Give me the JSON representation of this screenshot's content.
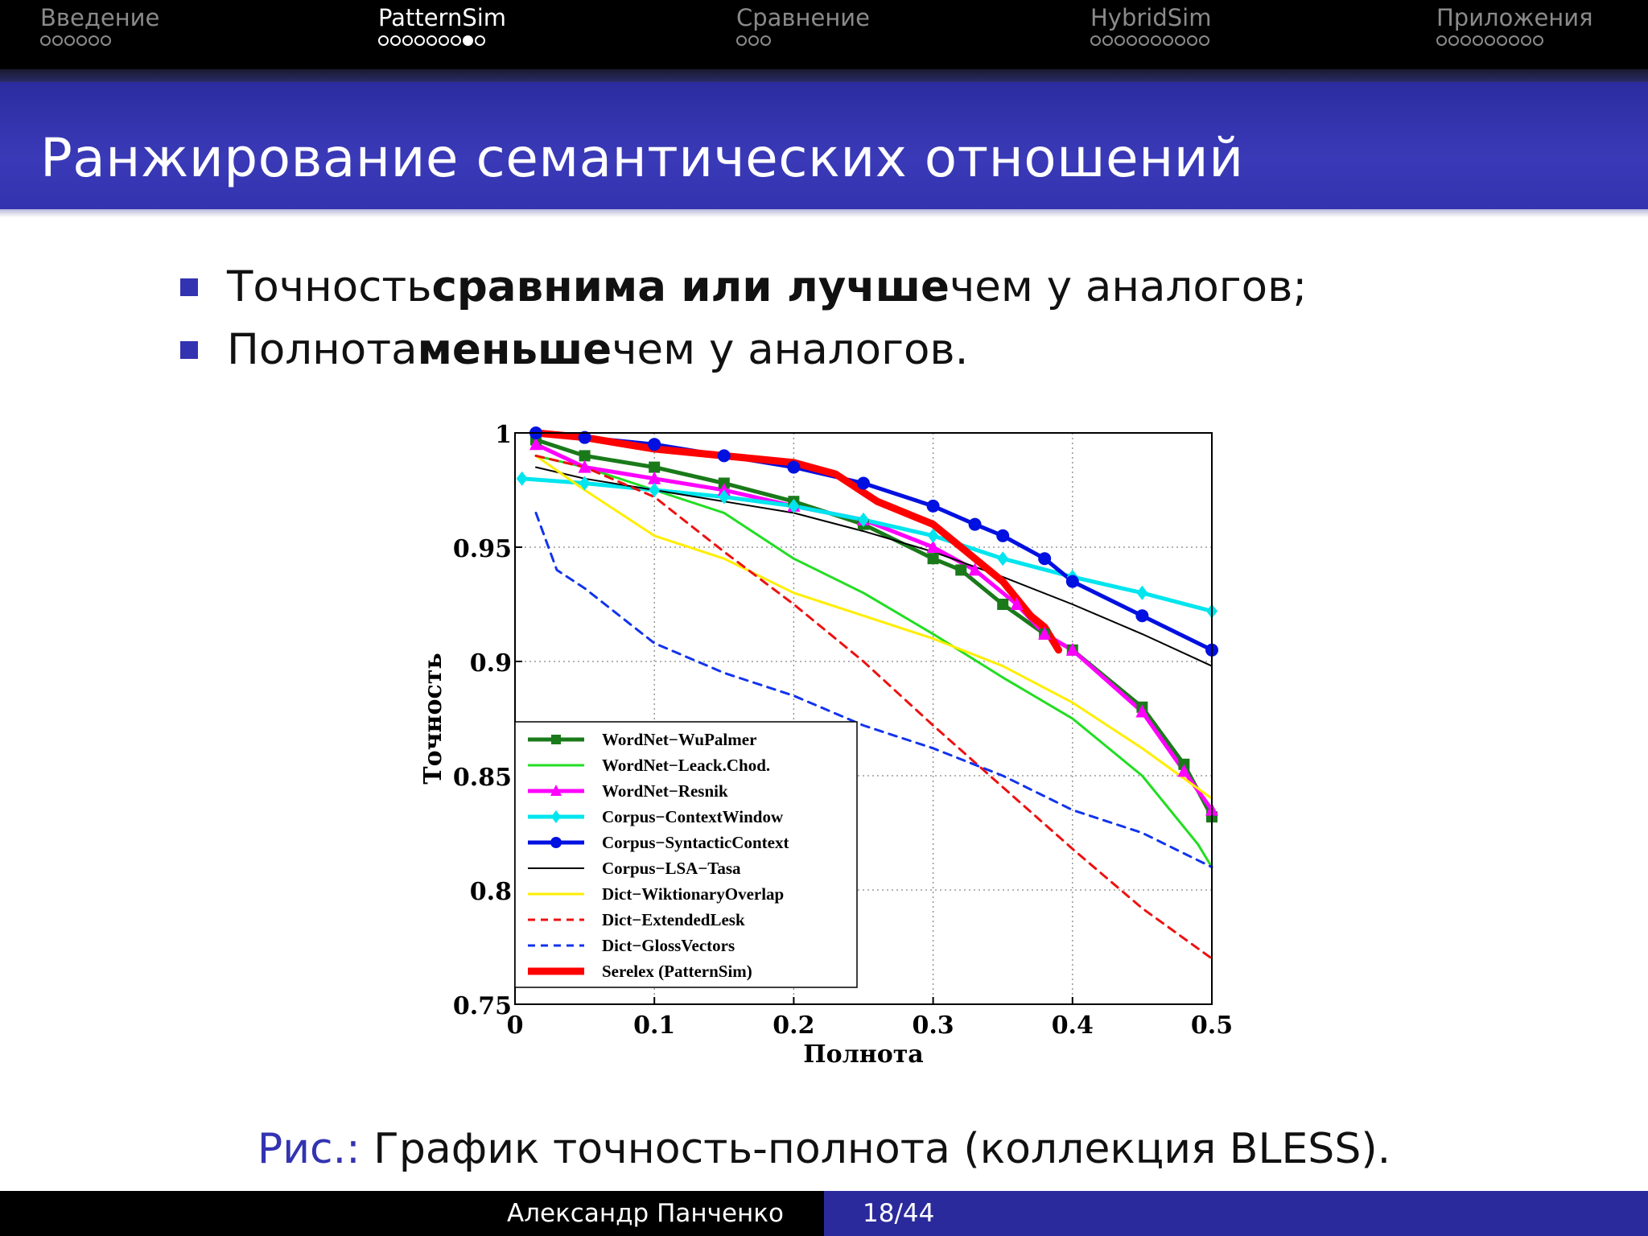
{
  "nav": {
    "sections": [
      {
        "title": "Введение",
        "dots": 6,
        "current": -1,
        "active": false
      },
      {
        "title": "PatternSim",
        "dots": 9,
        "current": 7,
        "active": true
      },
      {
        "title": "Сравнение",
        "dots": 3,
        "current": -1,
        "active": false
      },
      {
        "title": "HybridSim",
        "dots": 10,
        "current": -1,
        "active": false
      },
      {
        "title": "Приложения",
        "dots": 9,
        "current": -1,
        "active": false
      }
    ]
  },
  "title": "Ранжирование семантических отношений",
  "bullets": [
    {
      "before": "Точность ",
      "bold": "сравнима или лучше",
      "after": " чем у аналогов;"
    },
    {
      "before": "Полнота ",
      "bold": "меньше",
      "after": " чем у аналогов."
    }
  ],
  "caption": {
    "prefix": "Рис.:",
    "text": " График точность-полнота (коллекция BLESS)."
  },
  "footer": {
    "author": "Александр Панченко",
    "page": "18/44"
  },
  "colors": {
    "accent": "#3333b2",
    "title_bg": "#3333b0"
  },
  "chart_data": {
    "type": "line",
    "xlabel": "Полнота",
    "ylabel": "Точность",
    "xlim": [
      0,
      0.5
    ],
    "ylim": [
      0.75,
      1
    ],
    "xticks": [
      "0",
      "0.1",
      "0.2",
      "0.3",
      "0.4",
      "0.5"
    ],
    "yticks": [
      "0.75",
      "0.8",
      "0.85",
      "0.9",
      "0.95",
      "1"
    ],
    "grid": true,
    "legend_position": "bottom-left",
    "series": [
      {
        "name": "WordNet−WuPalmer",
        "color": "#1a7a1a",
        "dash": "solid",
        "width": 5,
        "marker": "square",
        "x": [
          0.015,
          0.05,
          0.1,
          0.15,
          0.2,
          0.25,
          0.3,
          0.32,
          0.35,
          0.38,
          0.4,
          0.45,
          0.48,
          0.5
        ],
        "y": [
          0.997,
          0.99,
          0.985,
          0.978,
          0.97,
          0.96,
          0.945,
          0.94,
          0.925,
          0.912,
          0.905,
          0.88,
          0.855,
          0.832
        ]
      },
      {
        "name": "WordNet−Leack.Chod.",
        "color": "#22dd22",
        "dash": "solid",
        "width": 3,
        "marker": "none",
        "x": [
          0.015,
          0.05,
          0.1,
          0.15,
          0.2,
          0.25,
          0.3,
          0.35,
          0.4,
          0.45,
          0.49,
          0.5
        ],
        "y": [
          0.99,
          0.985,
          0.975,
          0.965,
          0.945,
          0.93,
          0.912,
          0.893,
          0.875,
          0.85,
          0.82,
          0.81
        ]
      },
      {
        "name": "WordNet−Resnik",
        "color": "#ff00ff",
        "dash": "solid",
        "width": 5,
        "marker": "triangle",
        "x": [
          0.015,
          0.05,
          0.1,
          0.15,
          0.2,
          0.25,
          0.3,
          0.33,
          0.36,
          0.38,
          0.4,
          0.45,
          0.48,
          0.5
        ],
        "y": [
          0.995,
          0.985,
          0.98,
          0.975,
          0.968,
          0.962,
          0.95,
          0.94,
          0.925,
          0.912,
          0.905,
          0.878,
          0.852,
          0.835
        ]
      },
      {
        "name": "Corpus−ContextWindow",
        "color": "#00e5ee",
        "dash": "solid",
        "width": 5,
        "marker": "diamond",
        "x": [
          0.005,
          0.05,
          0.1,
          0.15,
          0.2,
          0.25,
          0.3,
          0.35,
          0.4,
          0.45,
          0.5
        ],
        "y": [
          0.98,
          0.978,
          0.975,
          0.972,
          0.968,
          0.962,
          0.955,
          0.945,
          0.937,
          0.93,
          0.922
        ]
      },
      {
        "name": "Corpus−SyntacticContext",
        "color": "#0010e0",
        "dash": "solid",
        "width": 5,
        "marker": "circle",
        "x": [
          0.015,
          0.05,
          0.1,
          0.15,
          0.2,
          0.25,
          0.3,
          0.33,
          0.35,
          0.38,
          0.4,
          0.45,
          0.5
        ],
        "y": [
          1.0,
          0.998,
          0.995,
          0.99,
          0.985,
          0.978,
          0.968,
          0.96,
          0.955,
          0.945,
          0.935,
          0.92,
          0.905
        ]
      },
      {
        "name": "Corpus−LSA−Tasa",
        "color": "#000000",
        "dash": "solid",
        "width": 2,
        "marker": "none",
        "x": [
          0.015,
          0.05,
          0.1,
          0.15,
          0.2,
          0.25,
          0.3,
          0.35,
          0.4,
          0.45,
          0.5
        ],
        "y": [
          0.985,
          0.98,
          0.975,
          0.97,
          0.965,
          0.957,
          0.948,
          0.937,
          0.925,
          0.912,
          0.898
        ]
      },
      {
        "name": "Dict−WiktionaryOverlap",
        "color": "#ffee00",
        "dash": "solid",
        "width": 3,
        "marker": "none",
        "x": [
          0.015,
          0.05,
          0.1,
          0.15,
          0.2,
          0.25,
          0.3,
          0.35,
          0.4,
          0.45,
          0.5
        ],
        "y": [
          0.99,
          0.975,
          0.955,
          0.945,
          0.93,
          0.92,
          0.91,
          0.898,
          0.882,
          0.862,
          0.84
        ]
      },
      {
        "name": "Dict−ExtendedLesk",
        "color": "#ee1111",
        "dash": "dashed",
        "width": 3,
        "marker": "none",
        "x": [
          0.015,
          0.05,
          0.1,
          0.15,
          0.2,
          0.25,
          0.3,
          0.35,
          0.4,
          0.45,
          0.5
        ],
        "y": [
          0.99,
          0.985,
          0.972,
          0.948,
          0.925,
          0.9,
          0.872,
          0.845,
          0.818,
          0.792,
          0.77
        ]
      },
      {
        "name": "Dict−GlossVectors",
        "color": "#1133ee",
        "dash": "dashed",
        "width": 3,
        "marker": "none",
        "x": [
          0.015,
          0.03,
          0.05,
          0.1,
          0.15,
          0.2,
          0.25,
          0.3,
          0.35,
          0.4,
          0.45,
          0.5
        ],
        "y": [
          0.965,
          0.94,
          0.932,
          0.908,
          0.895,
          0.885,
          0.872,
          0.862,
          0.85,
          0.835,
          0.825,
          0.81
        ]
      },
      {
        "name": "Serelex (PatternSim)",
        "color": "#ff0000",
        "dash": "solid",
        "width": 9,
        "marker": "none",
        "x": [
          0.015,
          0.05,
          0.1,
          0.15,
          0.2,
          0.23,
          0.26,
          0.3,
          0.33,
          0.35,
          0.37,
          0.38,
          0.39
        ],
        "y": [
          1.0,
          0.998,
          0.993,
          0.99,
          0.987,
          0.982,
          0.97,
          0.96,
          0.945,
          0.935,
          0.92,
          0.915,
          0.905
        ]
      }
    ]
  }
}
